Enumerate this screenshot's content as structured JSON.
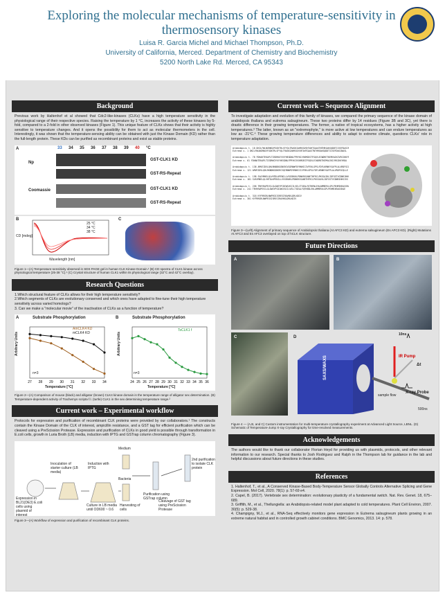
{
  "title": "Exploring the molecular mechanisms of temperature-sensitivity in thermosensory kinases",
  "authors": "Luisa R. Garcia Michel and Michael Thompson, Ph.D.",
  "affiliation": "University of California, Merced. Department of Chemistry and Biochemistry",
  "address": "5200 North Lake Rd. Merced, CA 95343",
  "background": {
    "heading": "Background",
    "text": "Previous work by Haltenhof et al showed that Cdc2-like-kinases (CLKs) have a high temperature sensitivity in the physiological range of their respective species. Raising the temperature by 1 °C, increases the activity of these kinases by 5-fold, compared to a 2-fold in other observed kinases (Figure 1). This unique feature of CLKs shows that their activity is highly sensitive to temperature changes. And it opens the possibility for them to act as molecular thermometers in the cell. Interestingly, it was shown that the temperature-sensing ability can be obtained with just the Kinase Domain (KD) rather than the full-length protein. These KDs can be purified as recombinant proteins and exist as stable proteins.",
    "fig_a_label": "A",
    "temps": [
      "33",
      "34",
      "35",
      "36",
      "37",
      "38",
      "39",
      "40",
      "°C"
    ],
    "np_label": "Np",
    "coomassie_label": "Coomassie",
    "band1": "GST-CLK1 KD",
    "band2": "GST-RS-Repeat",
    "band3": "GST-CLK1 KD",
    "band4": "GST-RS-Repeat",
    "fig_b_label": "B",
    "fig_c_label": "C",
    "cd_legend": [
      "25 °C",
      "34 °C",
      "38 °C"
    ],
    "cd_xlabel": "Wavelength [nm]",
    "cd_ylabel": "CD [mdeg]",
    "caption": "Figure 1—(A) Temperature-sensitivity observed in SDS PAGE gel in human CLK Kinase Domain.¹ (B) CD spectra of CLK1 kinase across physiological temperature (25-38 °C).¹ (C) Crystal structure of human CLK1 within its physiological range (32°C and 42°C overlay)."
  },
  "research": {
    "heading": "Research Questions",
    "q1": "1.Which structural feature of CLKs allows for their high temperature sensitivity?",
    "q2": "2.Which segments of CLKs are evolutionary conserved and which ones have adapted to fine-tune their high temperature sensitivity across varied homologs?",
    "q3": "3. Can we make a \"molecular movie\" of the inactivation of CLKs as a function of temperature?",
    "fig_a_label": "A",
    "fig_b_label": "B",
    "chart_a_title": "Substrate Phosphorylation",
    "chart_b_title": "Substrate Phosphorylation",
    "legend_a": [
      "AmCLK4 KD",
      "mCLK4 KD"
    ],
    "legend_b": [
      "TsCLK1 f"
    ],
    "xlabel": "Temperature [°C]",
    "ylabel": "Arbitrary Units",
    "n_label": "n=3",
    "caption": "Figure 2—(A) Comparison of mouse (black) and alligator (brown) CLK4 kinase domain in the temperature range of alligator sex determination. (B) Temperature-dependent activity of Trachemys scripta f.l. (turtle) CLK1 in the sex determining temperature range.²"
  },
  "workflow": {
    "heading": "Current work – Experimental workflow",
    "text": "Protocols for expression and purification of recombinant CLK proteins were provided by our collaborators.¹ The constructs contain the Kinase Domain of the CLK of interest, ampicillin resistance, and a GST tag for efficient purification which can be cleaved using a PreScission Protease. Expression and purification of CLKs in good yield is possible through transformation in E.coli cells, growth in Luria Broth (LB) media, induction with IPTG and GSTrap column chromatography (Figure 3).",
    "steps": [
      "Expression in BL21(DE3) E.coli cells using plasmid of interest",
      "Inoculation of starter culture (LB media)",
      "Culture in LB media until OD600 ~ 0.6",
      "Induction with IPTG",
      "Harvesting of cells",
      "Purification using GSTrap column",
      "Cleavage of GST tag using PreScission Protease",
      "2nd purification to isolate CLK protein"
    ],
    "medium_label": "Medium",
    "bacteria_label": "Bacteria",
    "caption": "Figure 3—(A) Workflow of expression and purification of recombinant CLK proteins."
  },
  "sequence": {
    "heading": "Current work – Sequence Alignment",
    "text": "To investigate adaptation and evolution of this family of kinases, we compared the primary sequence of the kinase domain of arabidopsis thaliana and eutrema salsugineum. These two proteins differ by 14 residues (Figure 3B and 3C), yet there is drastic difference in their growing temperatures. The former, a native of tropical ecosystems, has a higher activity at high temperatures.³ The latter, known as an \"extremophyte,\" is more active at low temperatures and can endure temperatures as low as -21°C.⁴ These growing temperature differences and ability to adapt to extreme climate, questions CLKs' role in temperature adaptation.",
    "species1": "Arabidopsis t.",
    "species2": "Eutrema s.",
    "rows": [
      {
        "n1": "18",
        "n2": "1",
        "s": "DKILFWLNGRNGVFGGKTRLSFYQLTRASKIAHRSGVSHTAHTGAASTNTHRSAKSQDDTIISEFDASINASL"
      },
      {
        "n1": "78",
        "n2": "61",
        "s": "FDHAKTEKAPLTIEDRKGYVVYHEGDNLFPRYKIVSKMGEGTFGQVLECWDRETKEMVAIKIVRSIKKYRDA"
      },
      {
        "n1": "138",
        "n2": "121",
        "s": "AMVEIDVLQHLRKNDKGGNSRCVQIRNWFDYRNHICIVFEKLGPSLFDFLKRNKYSAFPLALVRDFGCQLLE"
      },
      {
        "n1": "198",
        "n2": "181",
        "s": "SVAYMHELQLVHTDLKPENILLVSSENVKLPDNKRSSANETHFRCLPKSSAIKLIDFGSTVCDNRIHHSIVS"
      },
      {
        "n1": "258",
        "n2": "241",
        "s": "TRHYRAPEVILGLGWSYPCDIWSVGCILVELCTGEALFQTHENLEHLAMMERVLGPLPEHMIKRASSRAE"
      },
      {
        "n1": "318",
        "n2": "301",
        "s": "KYFRRGRLNWPEGSISRESIRAVKKLDRLKDIV"
      }
    ],
    "caption": "Figure 3—(Left) Alignment of primary sequence of Arabidopsis thaliana (At AFC3 KD) and eutrema salsugineum (Es AFC3 KD). (Right) Mutations At AFC3 and Es AFC3 overlayed on top of hCLK structure."
  },
  "future": {
    "heading": "Future Directions",
    "labels": [
      "A",
      "B",
      "C",
      "D"
    ],
    "ir_label": "IR Pump",
    "xray_label": "X-ray Probe",
    "saxs_label": "SAXS/WAXS",
    "sample_label": "sample flow",
    "t1": "10ns",
    "t2": "Δt",
    "t3": "500ns",
    "caption": "Figure 4 — (A,B, and C) Custom instrumentation for multi-temperature crystallography experiment at Advanced Light Source, LBNL. (D) Schematic of Temperature-Jump X-ray Crystallography for time-resolved measurements."
  },
  "ack": {
    "heading": "Acknowledgements",
    "text": "The authors would like to thank our collaborator Florian Heyd for providing us with plasmids, protocols, and other relevant information to our research. Special thanks to Josh Rodriguez and Ralph in the Thompson lab for guidance in the lab and helpful discussions about future directions in these studies."
  },
  "refs": {
    "heading": "References",
    "items": [
      "1. Haltenhof, T., et al., A Conserved Kinase-Based Body-Temperature Sensor Globally Controls Alternative Splicing and Gene Expression. Mol Cell, 2020. 78(1): p. 57-69 e4.",
      "2. Capel, B. (2017). Vertebrate sex determination: evolutionary plasticity of a fundamental switch. Nat. Rev. Genet. 18, 675–689.",
      "3. Griffith, M., et al., Thellungiella: an Arabidopsis-related model plant adapted to cold temperatures. Plant Cell Environ, 2007. 30(5): p. 529-38.",
      "4. Champigny, M.J., et al., RNA-Seq effectively monitors gene expression in Eutrema salsugineum plants growing in an extreme natural habitat and in controlled growth cabinet conditions. BMC Genomics, 2013. 14: p. 578."
    ]
  },
  "chart_data": [
    {
      "type": "line",
      "title": "Substrate Phosphorylation",
      "xlabel": "Temperature [°C]",
      "ylabel": "Arbitrary Units",
      "x": [
        27,
        28,
        29,
        30,
        31,
        32,
        33,
        34
      ],
      "series": [
        {
          "name": "AmCLK4 KD",
          "values": [
            7.8,
            7.3,
            6.8,
            5.8,
            4.5,
            3.2,
            1.8,
            0.9
          ]
        },
        {
          "name": "mCLK4 KD",
          "values": [
            8.6,
            8.4,
            8.2,
            8.0,
            7.7,
            7.3,
            6.6,
            5.0
          ]
        }
      ],
      "ylim": [
        0,
        10
      ]
    },
    {
      "type": "line",
      "title": "Substrate Phosphorylation",
      "xlabel": "Temperature [°C]",
      "ylabel": "Arbitrary Units",
      "x": [
        24,
        25,
        26,
        27,
        28,
        29,
        30,
        31,
        32,
        33,
        34,
        35,
        36
      ],
      "series": [
        {
          "name": "TsCLK1 f",
          "values": [
            7.8,
            8.2,
            7.6,
            7.0,
            6.6,
            5.6,
            4.0,
            3.0,
            2.2,
            1.6,
            1.2,
            0.9,
            0.8
          ]
        }
      ],
      "ylim": [
        0,
        10
      ]
    }
  ]
}
